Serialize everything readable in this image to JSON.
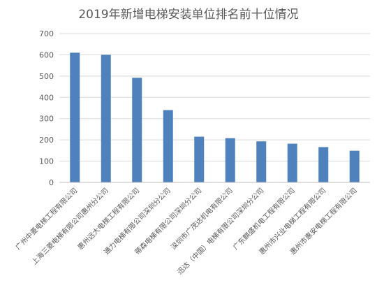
{
  "chart_data": {
    "type": "bar",
    "title": "2019年新增电梯安装单位排名前十位情况",
    "categories": [
      "广州中菱电梯工程有限公司",
      "上海三菱电梯有限公司惠州分公司",
      "惠州远大电梯工程有限公司",
      "通力电梯有限公司深圳分公司",
      "蒂森电梯有限公司深圳分公司",
      "深圳市广茂达机电有限公司",
      "迅达（中国）电梯有限公司深圳分公司",
      "广东麒盛机电工程有限公司",
      "惠州市兴业电梯工程有限公司",
      "惠州市惠安电梯工程有限公司"
    ],
    "values": [
      610,
      600,
      492,
      340,
      215,
      208,
      193,
      182,
      166,
      149
    ],
    "ylim": [
      0,
      700
    ],
    "yticks": [
      0,
      100,
      200,
      300,
      400,
      500,
      600,
      700
    ],
    "grid": true,
    "bar_color": "#4F81BD",
    "xlabel": "",
    "ylabel": ""
  }
}
